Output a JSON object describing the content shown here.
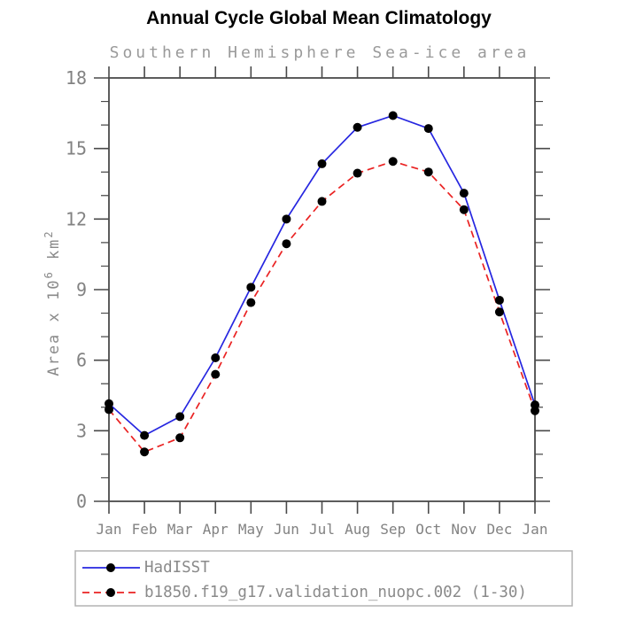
{
  "header": {
    "title": "Annual Cycle Global Mean Climatology",
    "subtitle": "Southern Hemisphere Sea-ice area"
  },
  "chart_data": {
    "type": "line",
    "title": "Annual Cycle Global Mean Climatology",
    "subtitle": "Southern Hemisphere Sea-ice area",
    "xlabel": "",
    "ylabel": "Area x 10^6 km^2",
    "x_categories": [
      "Jan",
      "Feb",
      "Mar",
      "Apr",
      "May",
      "Jun",
      "Jul",
      "Aug",
      "Sep",
      "Oct",
      "Nov",
      "Dec",
      "Jan"
    ],
    "ylim": [
      0,
      18
    ],
    "yticks": [
      0,
      3,
      6,
      9,
      12,
      15,
      18
    ],
    "ytick_minor_step": 1,
    "grid": false,
    "legend_position": "bottom-left",
    "series": [
      {
        "name": "HadISST",
        "line_style": "solid",
        "line_color": "#2626e0",
        "marker": "circle",
        "marker_color": "#000000",
        "values": [
          4.15,
          2.8,
          3.6,
          6.1,
          9.1,
          12.0,
          14.35,
          15.9,
          16.4,
          15.85,
          13.1,
          8.55,
          4.1
        ]
      },
      {
        "name": "b1850.f19_g17.validation_nuopc.002 (1-30)",
        "line_style": "dashed",
        "line_color": "#ea2222",
        "marker": "circle",
        "marker_color": "#000000",
        "values": [
          3.9,
          2.1,
          2.7,
          5.4,
          8.45,
          10.95,
          12.75,
          13.95,
          14.45,
          14.0,
          12.4,
          8.05,
          3.85
        ]
      }
    ],
    "colors": {
      "background": "#ffffff",
      "frame": "#4a4a4a",
      "tick_labels": "#828282",
      "subtitle": "#9a9a9a",
      "axis_title": "#8a8a8a",
      "legend_text": "#8a8a8a",
      "legend_border": "#b2b2b2"
    }
  }
}
